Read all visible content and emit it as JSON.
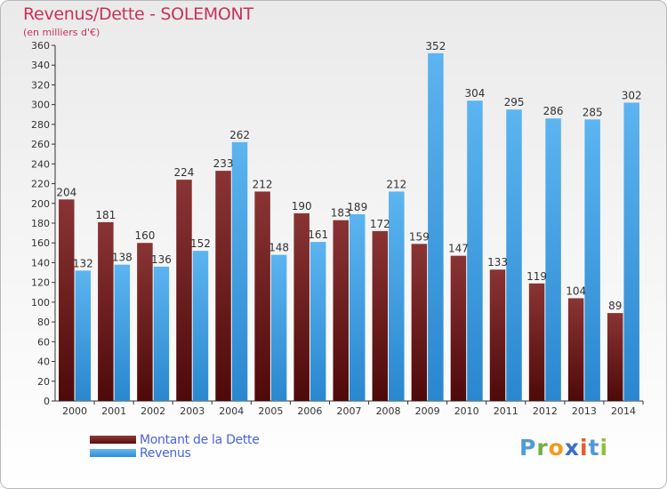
{
  "title": "Revenus/Dette - SOLEMONT",
  "subtitle": "(en milliers d'€)",
  "legend": {
    "debt": "Montant de la Dette",
    "revenue": "Revenus"
  },
  "logo": {
    "p": "P",
    "r": "r",
    "o": "o",
    "x": "x",
    "i1": "i",
    "t": "t",
    "i2": "i"
  },
  "colors": {
    "debt": "#6b1616",
    "revenue": "#42a0e6",
    "title": "#c8325a",
    "legend_text": "#4a64d8"
  },
  "chart_data": {
    "type": "bar",
    "title": "Revenus/Dette - SOLEMONT",
    "ylabel": "(en milliers d'€)",
    "ylim": [
      0,
      360
    ],
    "ytick_step": 20,
    "grid": false,
    "legend_position": "bottom-left",
    "categories": [
      "2000",
      "2001",
      "2002",
      "2003",
      "2004",
      "2005",
      "2006",
      "2007",
      "2008",
      "2009",
      "2010",
      "2011",
      "2012",
      "2013",
      "2014"
    ],
    "series": [
      {
        "name": "Montant de la Dette",
        "values": [
          204,
          181,
          160,
          224,
          233,
          212,
          190,
          183,
          172,
          159,
          147,
          133,
          119,
          104,
          89
        ]
      },
      {
        "name": "Revenus",
        "values": [
          132,
          138,
          136,
          152,
          262,
          148,
          161,
          189,
          212,
          352,
          304,
          295,
          286,
          285,
          302
        ]
      }
    ]
  }
}
